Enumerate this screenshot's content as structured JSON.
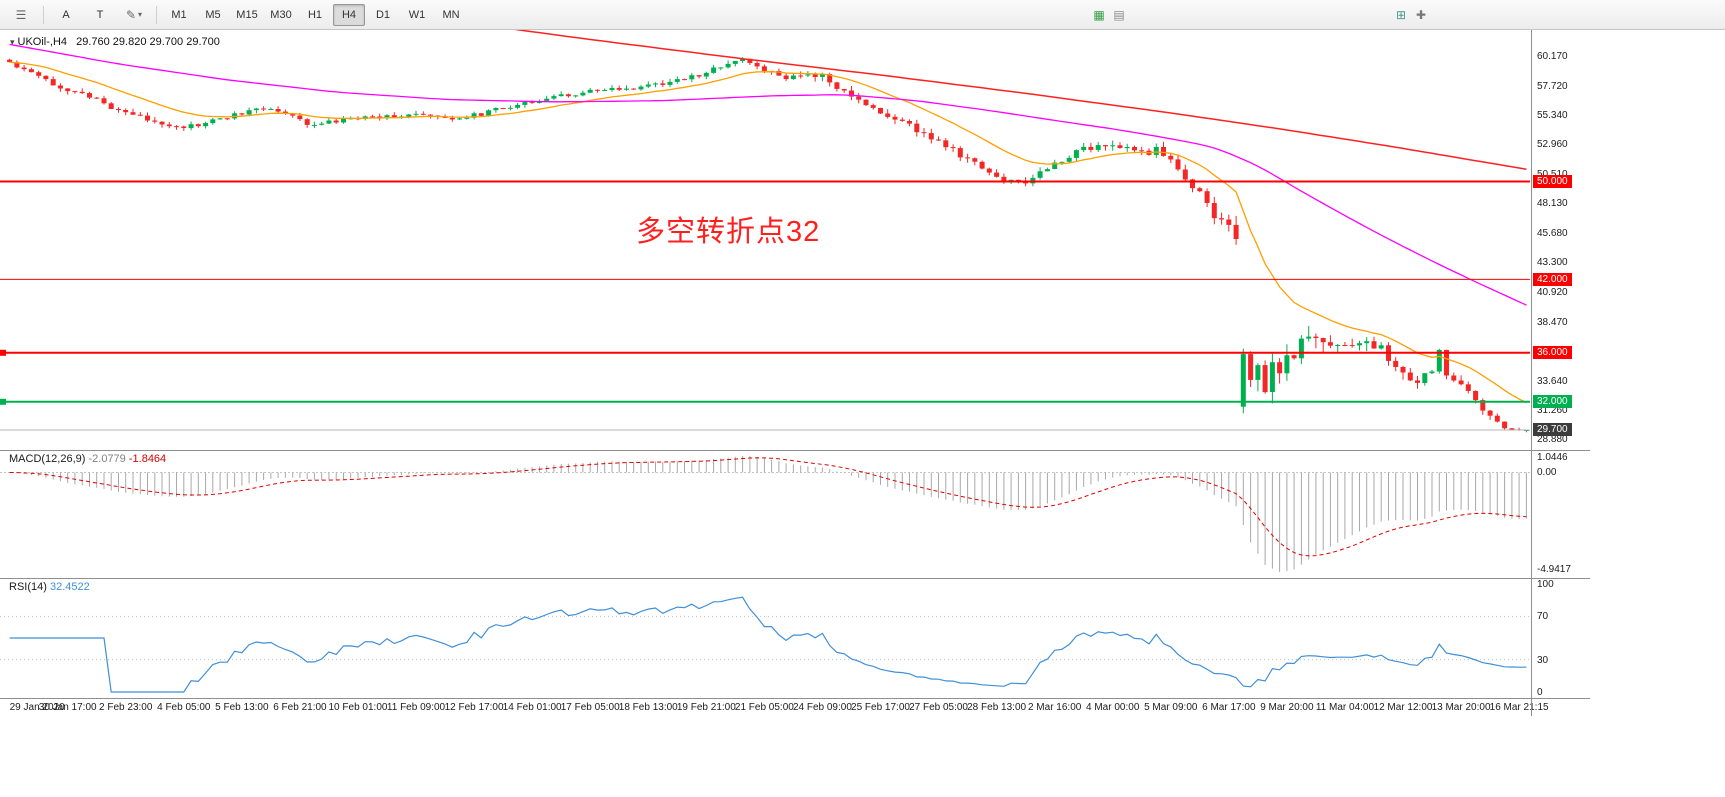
{
  "toolbar": {
    "list_icon_glyph": "☰",
    "a_label": "A",
    "t_label": "T",
    "draw_glyph": "✎",
    "dropdown_arrow": "▾",
    "timeframes": [
      "M1",
      "M5",
      "M15",
      "M30",
      "H1",
      "H4",
      "D1",
      "W1",
      "MN"
    ],
    "active_timeframe": "H4",
    "right_icons": [
      {
        "name": "indicators-icon",
        "glyph": "▦",
        "color": "#2f9e44",
        "group": 1
      },
      {
        "name": "objects-list-icon",
        "glyph": "▤",
        "color": "#8a8a8a",
        "group": 1
      },
      {
        "name": "grid-icon",
        "glyph": "⊞",
        "color": "#4a9a8a",
        "group": 2
      },
      {
        "name": "crosshair-icon",
        "glyph": "✚",
        "color": "#777777",
        "group": 2
      }
    ]
  },
  "chart": {
    "title": "UKOil-,H4",
    "dropdown_glyph": "▾",
    "ohlc": "29.760 29.820 29.700 29.700",
    "annotation": "多空转折点32",
    "annotation_color": "#ff1f1f",
    "price_ticks": [
      {
        "label": "60.170",
        "value": 60.17
      },
      {
        "label": "57.720",
        "value": 57.72
      },
      {
        "label": "55.340",
        "value": 55.34
      },
      {
        "label": "52.960",
        "value": 52.96
      },
      {
        "label": "50.510",
        "value": 50.51
      },
      {
        "label": "48.130",
        "value": 48.13
      },
      {
        "label": "45.680",
        "value": 45.68
      },
      {
        "label": "43.300",
        "value": 43.3
      },
      {
        "label": "40.920",
        "value": 40.92
      },
      {
        "label": "38.470",
        "value": 38.47
      },
      {
        "label": "33.640",
        "value": 33.64
      },
      {
        "label": "31.260",
        "value": 31.26
      },
      {
        "label": "28.880",
        "value": 28.88
      }
    ],
    "hlines": [
      {
        "price": 50.0,
        "label": "50.000",
        "color": "#ff0000",
        "weight": 2,
        "marker": false
      },
      {
        "price": 42.0,
        "label": "42.000",
        "color": "#ff0000",
        "weight": 1,
        "marker": false
      },
      {
        "price": 36.0,
        "label": "36.000",
        "color": "#ff0000",
        "weight": 2,
        "marker": true
      },
      {
        "price": 32.0,
        "label": "32.000",
        "color": "#00b050",
        "weight": 2,
        "marker": true
      }
    ],
    "bid": {
      "price": 29.7,
      "label": "29.700",
      "line_color": "#b5b5b5",
      "tag_color": "#3c3c3c"
    }
  },
  "chart_data": {
    "type": "candlestick",
    "symbol": "UKOil-",
    "timeframe": "H4",
    "title": "UKOil-,H4 29.760 29.820 29.700 29.700",
    "ylim": [
      28.88,
      60.17
    ],
    "candles": 210,
    "up_color": "#00b050",
    "down_color": "#f42727",
    "close_anchors": [
      [
        0,
        59.7
      ],
      [
        2,
        59.2
      ],
      [
        4,
        58.8
      ],
      [
        6,
        58.0
      ],
      [
        8,
        57.5
      ],
      [
        10,
        57.2
      ],
      [
        12,
        56.6
      ],
      [
        14,
        56.1
      ],
      [
        16,
        55.7
      ],
      [
        18,
        55.2
      ],
      [
        20,
        54.9
      ],
      [
        22,
        54.7
      ],
      [
        24,
        54.45
      ],
      [
        26,
        54.6
      ],
      [
        28,
        54.9
      ],
      [
        30,
        55.3
      ],
      [
        32,
        55.6
      ],
      [
        34,
        55.9
      ],
      [
        36,
        56.0
      ],
      [
        38,
        55.5
      ],
      [
        40,
        55.0
      ],
      [
        42,
        54.6
      ],
      [
        44,
        54.8
      ],
      [
        46,
        55.0
      ],
      [
        48,
        55.2
      ],
      [
        52,
        55.35
      ],
      [
        56,
        55.45
      ],
      [
        60,
        55.1
      ],
      [
        64,
        55.4
      ],
      [
        68,
        56.0
      ],
      [
        72,
        56.6
      ],
      [
        76,
        57.0
      ],
      [
        80,
        57.35
      ],
      [
        84,
        57.5
      ],
      [
        88,
        57.8
      ],
      [
        92,
        58.2
      ],
      [
        96,
        58.9
      ],
      [
        99,
        59.6
      ],
      [
        101,
        59.85
      ],
      [
        103,
        59.3
      ],
      [
        106,
        58.7
      ],
      [
        108,
        58.4
      ],
      [
        110,
        58.8
      ],
      [
        112,
        58.6
      ],
      [
        114,
        57.6
      ],
      [
        116,
        56.9
      ],
      [
        118,
        56.2
      ],
      [
        120,
        55.6
      ],
      [
        122,
        55.1
      ],
      [
        124,
        54.5
      ],
      [
        126,
        53.9
      ],
      [
        128,
        53.3
      ],
      [
        130,
        52.5
      ],
      [
        132,
        51.8
      ],
      [
        134,
        51.1
      ],
      [
        136,
        50.4
      ],
      [
        138,
        50.0
      ],
      [
        140,
        49.85
      ],
      [
        142,
        50.7
      ],
      [
        144,
        51.5
      ],
      [
        146,
        52.2
      ],
      [
        148,
        52.7
      ],
      [
        150,
        52.9
      ],
      [
        152,
        53.1
      ],
      [
        154,
        52.6
      ],
      [
        156,
        52.3
      ],
      [
        158,
        52.6
      ],
      [
        160,
        51.5
      ],
      [
        162,
        50.3
      ],
      [
        164,
        48.9
      ],
      [
        166,
        47.3
      ],
      [
        168,
        46.1
      ],
      [
        169,
        45.3
      ],
      [
        170,
        35.9
      ],
      [
        171,
        33.6
      ],
      [
        172,
        34.8
      ],
      [
        173,
        33.2
      ],
      [
        174,
        35.2
      ],
      [
        175,
        34.4
      ],
      [
        176,
        35.9
      ],
      [
        178,
        36.6
      ],
      [
        180,
        37.4
      ],
      [
        181,
        36.5
      ],
      [
        182,
        37.1
      ],
      [
        183,
        36.3
      ],
      [
        184,
        36.9
      ],
      [
        186,
        36.3
      ],
      [
        188,
        36.7
      ],
      [
        190,
        35.6
      ],
      [
        192,
        34.3
      ],
      [
        194,
        33.4
      ],
      [
        196,
        34.7
      ],
      [
        197,
        35.9
      ],
      [
        198,
        34.4
      ],
      [
        200,
        33.7
      ],
      [
        202,
        31.9
      ],
      [
        204,
        30.7
      ],
      [
        206,
        30.0
      ],
      [
        208,
        29.55
      ],
      [
        209,
        29.7
      ]
    ],
    "pinned_closes": [
      [
        100,
        59.85
      ],
      [
        140,
        49.85
      ],
      [
        169,
        45.3
      ],
      [
        170,
        35.9
      ],
      [
        209,
        29.7
      ]
    ],
    "gaps": [
      {
        "index": 170,
        "open": 31.6
      }
    ],
    "volatility_anchors": [
      [
        0,
        0.5
      ],
      [
        40,
        0.45
      ],
      [
        70,
        0.4
      ],
      [
        100,
        0.5
      ],
      [
        112,
        0.65
      ],
      [
        140,
        0.6
      ],
      [
        160,
        0.7
      ],
      [
        168,
        0.9
      ],
      [
        170,
        1.9
      ],
      [
        178,
        1.6
      ],
      [
        186,
        1.1
      ],
      [
        196,
        0.9
      ],
      [
        204,
        0.6
      ],
      [
        209,
        0.5
      ]
    ],
    "crash_floor": {
      "from": 170,
      "to": 201,
      "min": 31.05
    },
    "moving_averages": {
      "fast": {
        "color": "#ff9f00",
        "period": 16
      },
      "medium": {
        "color": "#ff00ff",
        "anchors": [
          [
            0,
            61.2
          ],
          [
            15,
            59.6
          ],
          [
            30,
            58.3
          ],
          [
            45,
            57.3
          ],
          [
            60,
            56.7
          ],
          [
            75,
            56.5
          ],
          [
            90,
            56.6
          ],
          [
            105,
            57.0
          ],
          [
            115,
            57.1
          ],
          [
            125,
            56.6
          ],
          [
            135,
            55.8
          ],
          [
            145,
            54.9
          ],
          [
            152,
            54.3
          ],
          [
            160,
            53.5
          ],
          [
            166,
            52.8
          ],
          [
            172,
            51.3
          ],
          [
            178,
            49.2
          ],
          [
            184,
            47.2
          ],
          [
            190,
            45.3
          ],
          [
            196,
            43.5
          ],
          [
            202,
            41.8
          ],
          [
            209,
            39.9
          ]
        ]
      },
      "slow": {
        "color": "#ff2020",
        "anchors": [
          [
            40,
            65.0
          ],
          [
            60,
            63.2
          ],
          [
            80,
            61.6
          ],
          [
            100,
            60.1
          ],
          [
            120,
            58.7
          ],
          [
            140,
            57.2
          ],
          [
            160,
            55.6
          ],
          [
            175,
            54.3
          ],
          [
            190,
            52.9
          ],
          [
            200,
            51.9
          ],
          [
            209,
            51.0
          ]
        ]
      }
    },
    "indicators": {
      "macd": {
        "fast": 12,
        "slow": 26,
        "signal": 9,
        "histogram_color": "#a8a8a8",
        "signal_color": "#e00000"
      },
      "rsi": {
        "period": 14,
        "color": "#3f8fd9",
        "levels": [
          70,
          30
        ]
      }
    }
  },
  "macd_panel": {
    "name": "MACD(12,26,9)",
    "value": "-2.0779",
    "signal_value": "-1.8464",
    "scale_top": "1.0446",
    "scale_zero": "0.00",
    "scale_bottom": "-4.9417"
  },
  "rsi_panel": {
    "name": "RSI(14)",
    "value": "32.4522",
    "scale": [
      "100",
      "70",
      "30",
      "0"
    ]
  },
  "time_axis": [
    "29 Jan 2020",
    "30 Jan 17:00",
    "2 Feb 23:00",
    "4 Feb 05:00",
    "5 Feb 13:00",
    "6 Feb 21:00",
    "10 Feb 01:00",
    "11 Feb 09:00",
    "12 Feb 17:00",
    "14 Feb 01:00",
    "17 Feb 05:00",
    "18 Feb 13:00",
    "19 Feb 21:00",
    "21 Feb 05:00",
    "24 Feb 09:00",
    "25 Feb 17:00",
    "27 Feb 05:00",
    "28 Feb 13:00",
    "2 Mar 16:00",
    "4 Mar 00:00",
    "5 Mar 09:00",
    "6 Mar 17:00",
    "9 Mar 20:00",
    "11 Mar 04:00",
    "12 Mar 12:00",
    "13 Mar 20:00",
    "16 Mar 21:15"
  ]
}
